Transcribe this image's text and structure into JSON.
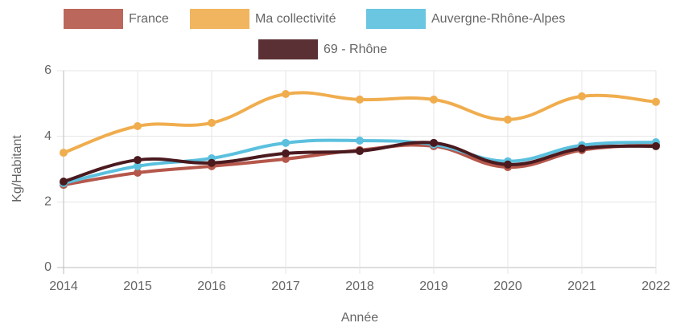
{
  "chart_data": {
    "type": "line",
    "categories": [
      "2014",
      "2015",
      "2016",
      "2017",
      "2018",
      "2019",
      "2020",
      "2021",
      "2022"
    ],
    "series": [
      {
        "name": "France",
        "color": "#b5574b",
        "values": [
          2.52,
          2.89,
          3.09,
          3.31,
          3.58,
          3.7,
          3.06,
          3.58,
          3.75
        ]
      },
      {
        "name": "Ma collectivité",
        "color": "#f0ad4e",
        "values": [
          3.5,
          4.31,
          4.41,
          5.29,
          5.12,
          5.12,
          4.51,
          5.22,
          5.05
        ]
      },
      {
        "name": "Auvergne-Rhône-Alpes",
        "color": "#5bc0de",
        "values": [
          2.57,
          3.09,
          3.33,
          3.8,
          3.87,
          3.75,
          3.24,
          3.73,
          3.82
        ]
      },
      {
        "name": "69 - Rhône",
        "color": "#4a1a1f",
        "values": [
          2.62,
          3.28,
          3.19,
          3.48,
          3.55,
          3.8,
          3.14,
          3.63,
          3.7
        ]
      }
    ],
    "ylim": [
      0,
      6
    ],
    "yticks": [
      0,
      2,
      4,
      6
    ],
    "xlabel": "Année",
    "ylabel": "Kg/Habitant",
    "grid": true,
    "legend": "top"
  }
}
